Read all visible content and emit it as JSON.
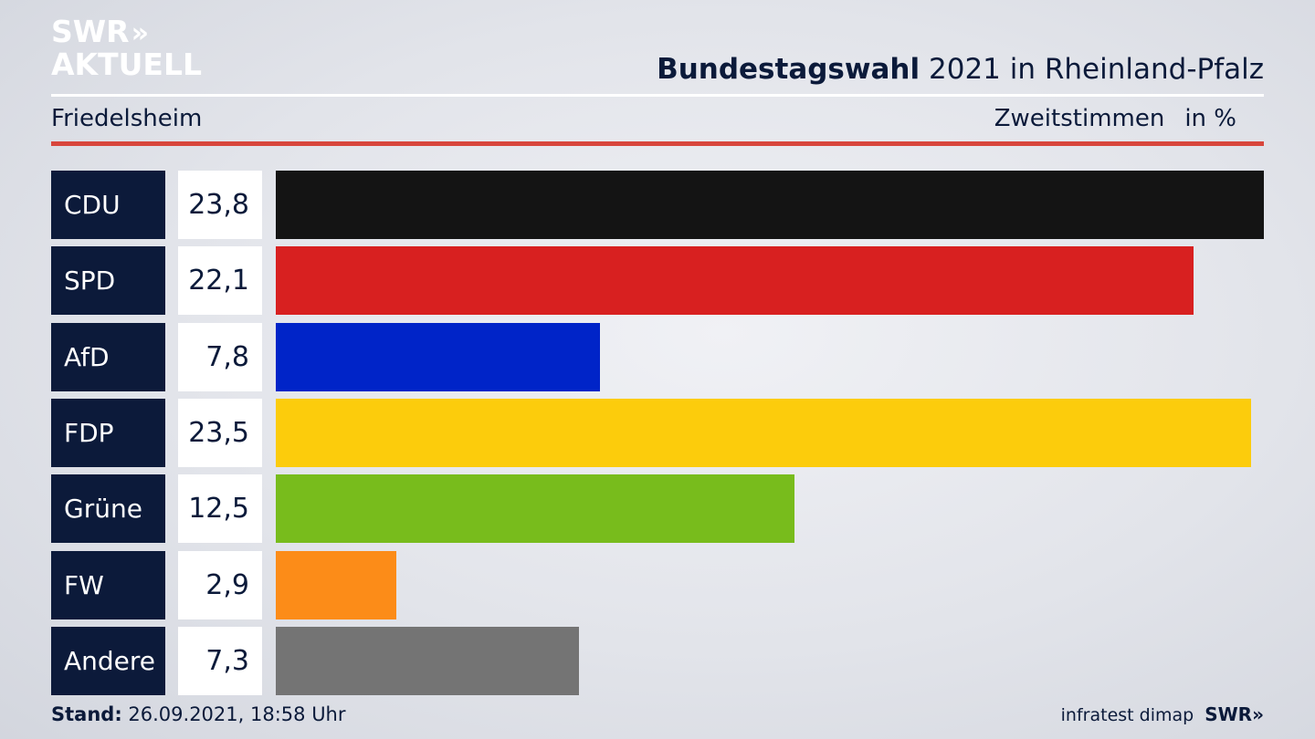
{
  "logo": {
    "line1": "SWR",
    "chevrons": "»",
    "line2": "AKTUELL"
  },
  "header": {
    "title_bold": "Bundestagswahl",
    "title_rest": "2021 in Rheinland-Pfalz",
    "region": "Friedelsheim",
    "measure": "Zweitstimmen",
    "unit": "in %"
  },
  "chart_data": {
    "type": "bar",
    "orientation": "horizontal",
    "categories": [
      "CDU",
      "SPD",
      "AfD",
      "FDP",
      "Grüne",
      "FW",
      "Andere"
    ],
    "values": [
      23.8,
      22.1,
      7.8,
      23.5,
      12.5,
      2.9,
      7.3
    ],
    "value_labels": [
      "23,8",
      "22,1",
      "7,8",
      "23,5",
      "12,5",
      "2,9",
      "7,3"
    ],
    "colors": [
      "#141414",
      "#d82020",
      "#0024c8",
      "#fccc0c",
      "#78bc1c",
      "#fc8c18",
      "#747474"
    ],
    "title": "Bundestagswahl 2021 in Rheinland-Pfalz",
    "xlabel": "",
    "ylabel": "",
    "xlim": [
      0,
      23.8
    ],
    "grid": false,
    "legend": "none"
  },
  "footer": {
    "stand_label": "Stand:",
    "stand_value": "26.09.2021, 18:58 Uhr",
    "source": "infratest dimap",
    "brand": "SWR»"
  }
}
